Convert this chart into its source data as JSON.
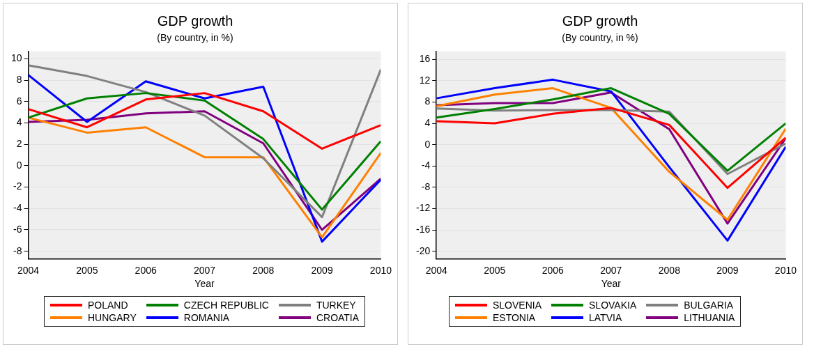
{
  "chart_data": [
    {
      "type": "line",
      "title": "GDP growth",
      "subtitle": "(By country, in %)",
      "xlabel": "Year",
      "x": [
        2004,
        2005,
        2006,
        2007,
        2008,
        2009,
        2010
      ],
      "xlim": [
        2004,
        2010
      ],
      "xticks": [
        2004,
        2005,
        2006,
        2007,
        2008,
        2009,
        2010
      ],
      "ylim": [
        -8.7,
        10.7
      ],
      "yticks": [
        -8,
        -6,
        -4,
        -2,
        0,
        2,
        4,
        6,
        8,
        10
      ],
      "grid": "y",
      "legend": "bottom",
      "marker": "none",
      "line_style": "solid",
      "series": [
        {
          "name": "POLAND",
          "color": "#ff0000",
          "values": [
            5.3,
            3.6,
            6.2,
            6.8,
            5.1,
            1.6,
            3.8
          ]
        },
        {
          "name": "CZECH REPUBLIC",
          "color": "#008000",
          "values": [
            4.5,
            6.3,
            6.8,
            6.1,
            2.5,
            -4.1,
            2.3
          ]
        },
        {
          "name": "TURKEY",
          "color": "#808080",
          "values": [
            9.4,
            8.4,
            6.9,
            4.7,
            0.7,
            -4.8,
            9.0
          ]
        },
        {
          "name": "HUNGARY",
          "color": "#ff8000",
          "values": [
            4.5,
            3.1,
            3.6,
            0.8,
            0.8,
            -6.7,
            1.2
          ]
        },
        {
          "name": "ROMANIA",
          "color": "#0000ff",
          "values": [
            8.5,
            4.1,
            7.9,
            6.3,
            7.4,
            -7.1,
            -1.3
          ]
        },
        {
          "name": "CROATIA",
          "color": "#800080",
          "values": [
            4.1,
            4.3,
            4.9,
            5.1,
            2.1,
            -6.0,
            -1.2
          ]
        }
      ]
    },
    {
      "type": "line",
      "title": "GDP growth",
      "subtitle": "(By country, in %)",
      "xlabel": "Year",
      "x": [
        2004,
        2005,
        2006,
        2007,
        2008,
        2009,
        2010
      ],
      "xlim": [
        2004,
        2010
      ],
      "xticks": [
        2004,
        2005,
        2006,
        2007,
        2008,
        2009,
        2010
      ],
      "ylim": [
        -21.4,
        17.5
      ],
      "yticks": [
        -20,
        -16,
        -12,
        -8,
        -4,
        0,
        4,
        8,
        12,
        16
      ],
      "grid": "y",
      "legend": "bottom",
      "marker": "none",
      "line_style": "solid",
      "series": [
        {
          "name": "SLOVENIA",
          "color": "#ff0000",
          "values": [
            4.4,
            4.0,
            5.8,
            6.9,
            3.7,
            -8.1,
            1.3
          ]
        },
        {
          "name": "SLOVAKIA",
          "color": "#008000",
          "values": [
            5.1,
            6.7,
            8.5,
            10.6,
            5.8,
            -4.9,
            4.0
          ]
        },
        {
          "name": "BULGARIA",
          "color": "#808080",
          "values": [
            6.8,
            6.4,
            6.5,
            6.5,
            6.2,
            -5.5,
            0.2
          ]
        },
        {
          "name": "ESTONIA",
          "color": "#ff8000",
          "values": [
            7.2,
            9.4,
            10.6,
            6.9,
            -5.1,
            -14.1,
            3.0
          ]
        },
        {
          "name": "LATVIA",
          "color": "#0000ff",
          "values": [
            8.7,
            10.6,
            12.2,
            10.0,
            -4.2,
            -18.0,
            -0.4
          ]
        },
        {
          "name": "LITHUANIA",
          "color": "#800080",
          "values": [
            7.4,
            7.8,
            7.8,
            9.8,
            2.9,
            -14.8,
            1.2
          ]
        }
      ]
    }
  ]
}
